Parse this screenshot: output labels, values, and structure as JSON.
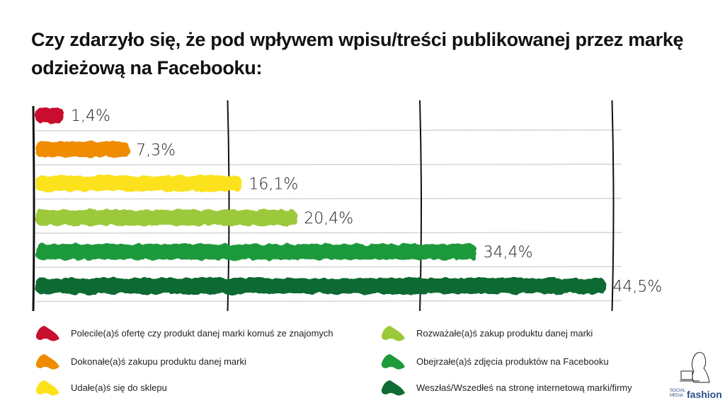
{
  "title": "Czy zdarzyło się, że pod wpływem wpisu/treści publikowanej przez markę odzieżową na Facebooku:",
  "chart_data": {
    "type": "bar",
    "orientation": "horizontal",
    "title": "Czy zdarzyło się, że pod wpływem wpisu/treści publikowanej przez markę odzieżową na Facebooku:",
    "categories": [
      "Polecile(a)ś ofertę czy produkt danej marki komuś ze znajomych",
      "Dokonałe(a)ś zakupu produktu danej marki",
      "Udałe(a)ś się do sklepu",
      "Rozważałe(a)ś zakup produktu danej marki",
      "Obejrzałe(a)ś zdjęcia produktów na Facebooku",
      "Weszłaś/Wszedłeś na stronę internetową marki/firmy"
    ],
    "values": [
      1.4,
      7.3,
      16.1,
      20.4,
      34.4,
      44.5
    ],
    "data_labels": [
      "1,4%",
      "7,3%",
      "16,1%",
      "20,4%",
      "34,4%",
      "44,5%"
    ],
    "colors": [
      "#c8102e",
      "#ef8c00",
      "#fbe21b",
      "#9cc93a",
      "#1f9a3a",
      "#0d6b33"
    ],
    "xlim": [
      0,
      46
    ],
    "vertical_gridlines": [
      15,
      30,
      45
    ],
    "grid": true,
    "legend_placement": "bottom"
  },
  "logo": {
    "small": "SOCIAL MEDIA",
    "brand": "fashion"
  }
}
